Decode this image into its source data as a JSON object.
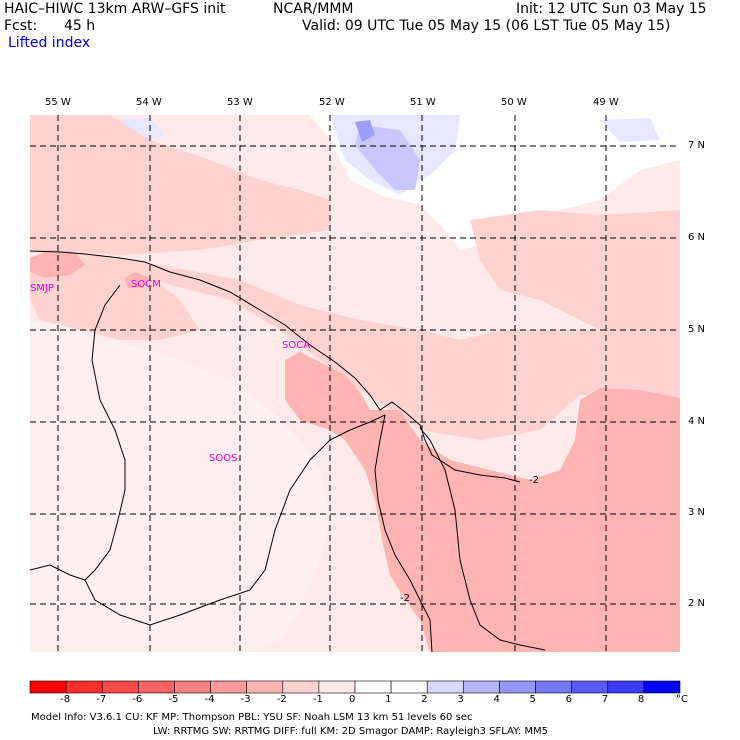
{
  "header": {
    "model_title": "HAIC–HIWC 13km ARW–GFS init",
    "org": "NCAR/MMM",
    "init": "Init: 12 UTC Sun 03 May 15",
    "fcst_label": "Fcst:",
    "fcst_value": "45 h",
    "valid": "Valid: 09 UTC Tue 05 May 15 (06 LST Tue 05 May 15)",
    "field": "Lifted index"
  },
  "map": {
    "lon_labels": [
      "55 W",
      "54 W",
      "53 W",
      "52 W",
      "51 W",
      "50 W",
      "49 W"
    ],
    "lat_labels": [
      "7 N",
      "6 N",
      "5 N",
      "4 N",
      "3 N",
      "2 N"
    ],
    "contour_labels": [
      "-2",
      "-2"
    ],
    "stations": [
      "SMJP",
      "SOCM",
      "SOCA",
      "SOOS"
    ]
  },
  "colorbar": {
    "tick_labels": [
      "-8",
      "-7",
      "-6",
      "-5",
      "-4",
      "-3",
      "-2",
      "-1",
      "0",
      "1",
      "2",
      "3",
      "4",
      "5",
      "6",
      "7",
      "8"
    ],
    "units": "°C",
    "colors": [
      "#ff0000",
      "#ff2d2d",
      "#ff4a4a",
      "#ff6464",
      "#ff8080",
      "#ff9b9b",
      "#ffb4b4",
      "#ffd2d2",
      "#ffeaea",
      "#ffffff",
      "#d8d8ff",
      "#b4b4ff",
      "#9696ff",
      "#7878ff",
      "#5a5aff",
      "#3c3cff",
      "#0000ff"
    ]
  },
  "footer": {
    "line1": "Model Info: V3.6.1    CU: KF      MP: Thompson    PBL: YSU      SF: Noah LSM    13 km   51 levels   60 sec",
    "line2": "LW: RRTMG    SW: RRTMG   DIFF: full    KM: 2D Smagor DAMP: Rayleigh3  SFLAY: MM5"
  }
}
